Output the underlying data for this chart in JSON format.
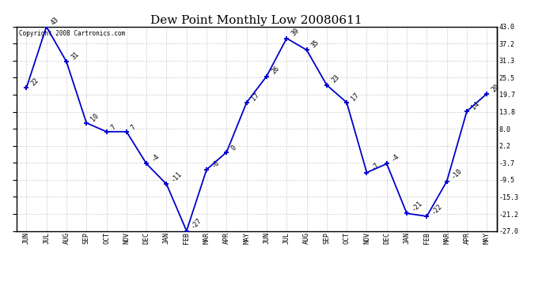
{
  "title": "Dew Point Monthly Low 20080611",
  "copyright": "Copyright 2008 Cartronics.com",
  "months": [
    "JUN",
    "JUL",
    "AUG",
    "SEP",
    "OCT",
    "NOV",
    "DEC",
    "JAN",
    "FEB",
    "MAR",
    "APR",
    "MAY",
    "JUN",
    "JUL",
    "AUG",
    "SEP",
    "OCT",
    "NOV",
    "DEC",
    "JAN",
    "FEB",
    "MAR",
    "APR",
    "MAY"
  ],
  "values": [
    22,
    43,
    31,
    10,
    7,
    7,
    -4,
    -11,
    -27,
    -6,
    0,
    17,
    26,
    39,
    35,
    23,
    17,
    -7,
    -4,
    -21,
    -22,
    -10,
    14,
    20
  ],
  "line_color": "#0000cc",
  "bg_color": "#ffffff",
  "grid_color": "#cccccc",
  "yticks": [
    -27.0,
    -21.2,
    -15.3,
    -9.5,
    -3.7,
    2.2,
    8.0,
    13.8,
    19.7,
    25.5,
    31.3,
    37.2,
    43.0
  ],
  "title_fontsize": 11,
  "tick_fontsize": 6,
  "annotation_fontsize": 6,
  "copyright_fontsize": 5.5
}
